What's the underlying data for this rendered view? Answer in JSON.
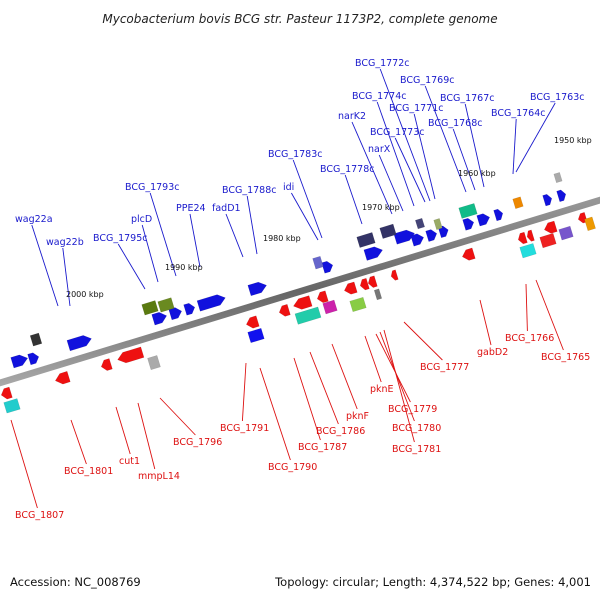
{
  "title": "Mycobacterium bovis BCG str. Pasteur 1173P2, complete genome",
  "footer": {
    "accession": "Accession: NC_008769",
    "topology": "Topology: circular; Length: 4,374,522 bp; Genes: 4,001"
  },
  "colors": {
    "forward_label": "#1a1acc",
    "reverse_label": "#dd1111",
    "forward_gene": "#1111dd",
    "reverse_gene": "#ee1111",
    "axis": "#777777",
    "tick": "#2e8b2e"
  },
  "kbp_marks": [
    {
      "kbp": 1950,
      "text": "1950 kbp"
    },
    {
      "kbp": 1960,
      "text": "1960 kbp"
    },
    {
      "kbp": 1970,
      "text": "1970 kbp"
    },
    {
      "kbp": 1980,
      "text": "1980 kbp"
    },
    {
      "kbp": 1990,
      "text": "1990 kbp"
    },
    {
      "kbp": 2000,
      "text": "2000 kbp"
    }
  ],
  "forward_labels": [
    "wag22a",
    "wag22b",
    "BCG_1795c",
    "plcD",
    "BCG_1793c",
    "PPE24",
    "fadD1",
    "BCG_1788c",
    "idi",
    "BCG_1783c",
    "BCG_1778c",
    "narK2",
    "narX",
    "BCG_1774c",
    "BCG_1773c",
    "BCG_1772c",
    "BCG_1771c",
    "BCG_1769c",
    "BCG_1768c",
    "BCG_1767c",
    "BCG_1764c",
    "BCG_1763c"
  ],
  "reverse_labels": [
    "BCG_1807",
    "BCG_1801",
    "cut1",
    "mmpL14",
    "BCG_1796",
    "BCG_1791",
    "BCG_1790",
    "BCG_1787",
    "BCG_1786",
    "pknF",
    "pknE",
    "BCG_1779",
    "BCG_1780",
    "BCG_1781",
    "BCG_1777",
    "gabD2",
    "BCG_1766",
    "BCG_1765"
  ]
}
